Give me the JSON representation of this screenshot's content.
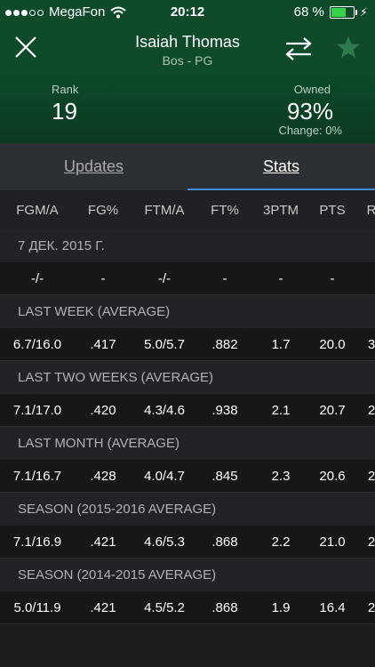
{
  "status_bar": {
    "carrier": "MegaFon",
    "time": "20:12",
    "battery_text": "68 %",
    "battery_level": 0.68,
    "battery_color": "#35d24a"
  },
  "header": {
    "player_name": "Isaiah Thomas",
    "player_team_pos": "Bos - PG",
    "icons": [
      "close-icon",
      "swap-icon",
      "star-icon"
    ]
  },
  "rank": {
    "rank_label": "Rank",
    "rank_value": "19",
    "owned_label": "Owned",
    "owned_value": "93%",
    "owned_change": "Change: 0%"
  },
  "tabs": {
    "updates": "Updates",
    "stats": "Stats",
    "active": "stats",
    "indicator_color": "#3a8fd8"
  },
  "columns": [
    "FGM/A",
    "FG%",
    "FTM/A",
    "FT%",
    "3PTM",
    "PTS",
    "R"
  ],
  "sections": [
    {
      "title": "7 ДЕК. 2015 Г.",
      "values": [
        "-/-",
        "-",
        "-/-",
        "-",
        "-",
        "-",
        ""
      ]
    },
    {
      "title": "LAST WEEK (AVERAGE)",
      "values": [
        "6.7/16.0",
        ".417",
        "5.0/5.7",
        ".882",
        "1.7",
        "20.0",
        "3"
      ]
    },
    {
      "title": "LAST TWO WEEKS (AVERAGE)",
      "values": [
        "7.1/17.0",
        ".420",
        "4.3/4.6",
        ".938",
        "2.1",
        "20.7",
        "2"
      ]
    },
    {
      "title": "LAST MONTH (AVERAGE)",
      "values": [
        "7.1/16.7",
        ".428",
        "4.0/4.7",
        ".845",
        "2.3",
        "20.6",
        "2"
      ]
    },
    {
      "title": "SEASON (2015-2016 AVERAGE)",
      "values": [
        "7.1/16.9",
        ".421",
        "4.6/5.3",
        ".868",
        "2.2",
        "21.0",
        "2"
      ]
    },
    {
      "title": "SEASON (2014-2015 AVERAGE)",
      "values": [
        "5.0/11.9",
        ".421",
        "4.5/5.2",
        ".868",
        "1.9",
        "16.4",
        "2"
      ]
    }
  ]
}
